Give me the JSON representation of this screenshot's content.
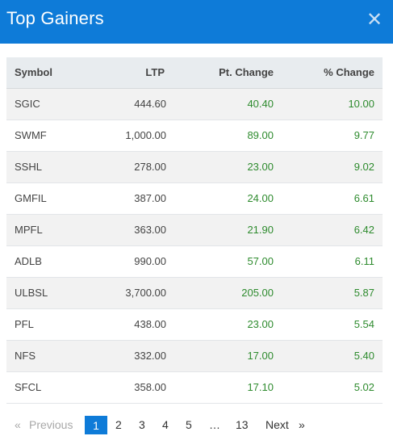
{
  "header": {
    "title": "Top Gainers",
    "close_icon": "close-icon"
  },
  "table": {
    "columns": [
      "Symbol",
      "LTP",
      "Pt. Change",
      "% Change"
    ],
    "rows": [
      {
        "symbol": "SGIC",
        "ltp": "444.60",
        "pt_change": "40.40",
        "pct_change": "10.00"
      },
      {
        "symbol": "SWMF",
        "ltp": "1,000.00",
        "pt_change": "89.00",
        "pct_change": "9.77"
      },
      {
        "symbol": "SSHL",
        "ltp": "278.00",
        "pt_change": "23.00",
        "pct_change": "9.02"
      },
      {
        "symbol": "GMFIL",
        "ltp": "387.00",
        "pt_change": "24.00",
        "pct_change": "6.61"
      },
      {
        "symbol": "MPFL",
        "ltp": "363.00",
        "pt_change": "21.90",
        "pct_change": "6.42"
      },
      {
        "symbol": "ADLB",
        "ltp": "990.00",
        "pt_change": "57.00",
        "pct_change": "6.11"
      },
      {
        "symbol": "ULBSL",
        "ltp": "3,700.00",
        "pt_change": "205.00",
        "pct_change": "5.87"
      },
      {
        "symbol": "PFL",
        "ltp": "438.00",
        "pt_change": "23.00",
        "pct_change": "5.54"
      },
      {
        "symbol": "NFS",
        "ltp": "332.00",
        "pt_change": "17.00",
        "pct_change": "5.40"
      },
      {
        "symbol": "SFCL",
        "ltp": "358.00",
        "pt_change": "17.10",
        "pct_change": "5.02"
      }
    ]
  },
  "pagination": {
    "first": "«",
    "previous": "Previous",
    "pages": [
      "1",
      "2",
      "3",
      "4",
      "5"
    ],
    "ellipsis": "…",
    "last_page": "13",
    "next": "Next",
    "last": "»",
    "current": "1"
  },
  "colors": {
    "header_bg": "#0e7bd8",
    "positive": "#2e8b2e",
    "active_page": "#0e7bd8"
  }
}
